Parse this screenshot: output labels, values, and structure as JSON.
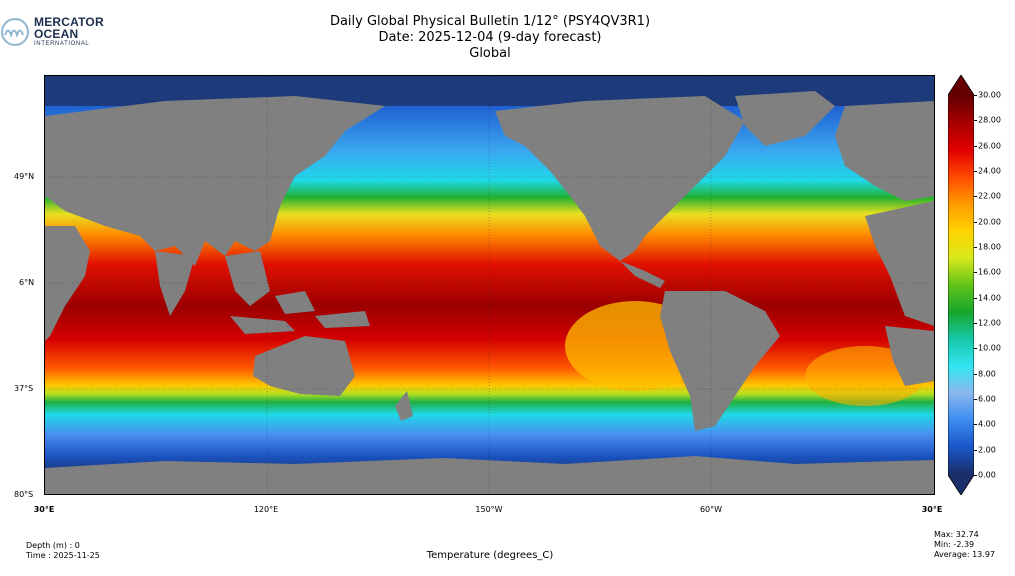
{
  "logo": {
    "line1": "MERCATOR",
    "line2": "OCEAN",
    "line3": "INTERNATIONAL"
  },
  "title": {
    "line1": "Daily Global Physical Bulletin 1/12° (PSY4QV3R1)",
    "line2": "Date: 2025-12-04 (9-day forecast)",
    "line3": "Global"
  },
  "lat_labels": [
    "49°N",
    "6°N",
    "37°S",
    "80°S"
  ],
  "lon_labels": [
    "30°E",
    "120°E",
    "150°W",
    "60°W",
    "30°E"
  ],
  "colorbar": {
    "min": 0,
    "max": 30,
    "ticks": [
      "30.00",
      "28.00",
      "26.00",
      "24.00",
      "22.00",
      "20.00",
      "18.00",
      "16.00",
      "14.00",
      "12.00",
      "10.00",
      "8.00",
      "6.00",
      "4.00",
      "2.00",
      "0.00"
    ],
    "colors": [
      "#1b2f6b",
      "#1a56c8",
      "#3d8cf0",
      "#8ab8ee",
      "#33e5f0",
      "#16c8a8",
      "#19a52c",
      "#62c418",
      "#d8e81c",
      "#ffd200",
      "#ff9a00",
      "#ff4a00",
      "#e00000",
      "#a80000",
      "#640000"
    ]
  },
  "footer": {
    "depth": "Depth (m) : 0",
    "time": "Time : 2025-11-25",
    "variable": "Temperature (degrees_C)",
    "max": "Max: 32.74",
    "min": "Min: -2.39",
    "average": "Average: 13.97"
  }
}
